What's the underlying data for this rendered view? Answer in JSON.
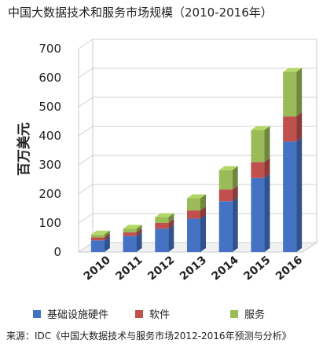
{
  "title": "中国大数据技术和服务市场规模（2010-2016年）",
  "source": "来源：IDC《中国大数据技术与服务市场2012-2016年预测与分析》",
  "chart_data": {
    "type": "bar",
    "stacked": true,
    "categories": [
      "2010",
      "2011",
      "2012",
      "2013",
      "2014",
      "2015",
      "2016"
    ],
    "series": [
      {
        "name": "基础设施硬件",
        "color": "#4472C4",
        "values": [
          40,
          55,
          80,
          115,
          175,
          255,
          380
        ]
      },
      {
        "name": "软件",
        "color": "#C0504D",
        "values": [
          10,
          13,
          20,
          28,
          40,
          55,
          87
        ]
      },
      {
        "name": "服务",
        "color": "#9BBB59",
        "values": [
          10,
          12,
          20,
          42,
          67,
          110,
          153
        ]
      }
    ],
    "title": "中国大数据技术和服务市场规模（2010-2016年）",
    "xlabel": "",
    "ylabel": "百万美元",
    "ylim": [
      0,
      700
    ],
    "yticks": [
      0,
      100,
      200,
      300,
      400,
      500,
      600,
      700
    ],
    "grid": true,
    "legend_position": "bottom"
  }
}
